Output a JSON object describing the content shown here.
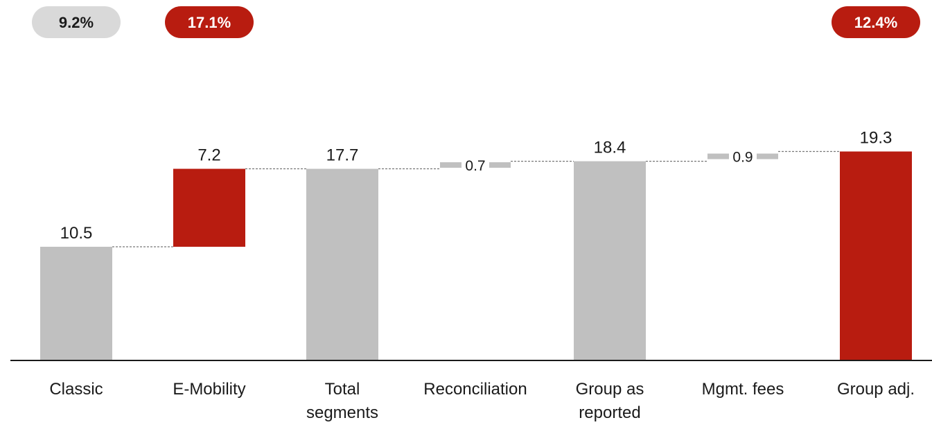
{
  "chart_data": {
    "type": "bar",
    "subtype": "waterfall",
    "categories": [
      [
        "Classic"
      ],
      [
        "E-Mobility"
      ],
      [
        "Total",
        "segments"
      ],
      [
        "Reconciliation"
      ],
      [
        "Group as",
        "reported"
      ],
      [
        "Mgmt. fees"
      ],
      [
        "Group adj."
      ]
    ],
    "values": [
      10.5,
      7.2,
      17.7,
      0.7,
      18.4,
      0.9,
      19.3
    ],
    "value_labels": [
      "10.5",
      "7.2",
      "17.7",
      "0.7",
      "18.4",
      "0.9",
      "19.3"
    ],
    "bar_kind": [
      "total",
      "increment",
      "total",
      "small-increment",
      "total",
      "small-increment",
      "total"
    ],
    "bar_colors": [
      "#c0c0c0",
      "#b81c10",
      "#c0c0c0",
      "#c0c0c0",
      "#c0c0c0",
      "#c0c0c0",
      "#b81c10"
    ],
    "ylim": [
      0,
      19.3
    ],
    "margin_badges": [
      {
        "category_index": 0,
        "label": "9.2%",
        "bg": "#d9d9d9",
        "fg": "#1a1a1a"
      },
      {
        "category_index": 1,
        "label": "17.1%",
        "bg": "#b81c10",
        "fg": "#ffffff"
      },
      {
        "category_index": 6,
        "label": "12.4%",
        "bg": "#b81c10",
        "fg": "#ffffff"
      }
    ],
    "title": "",
    "xlabel": "",
    "ylabel": "",
    "grid": false,
    "legend": "none"
  },
  "colors": {
    "gray": "#c0c0c0",
    "red": "#b81c10",
    "badge_gray": "#d9d9d9",
    "axis": "#1a1a1a",
    "connector": "#777777"
  }
}
